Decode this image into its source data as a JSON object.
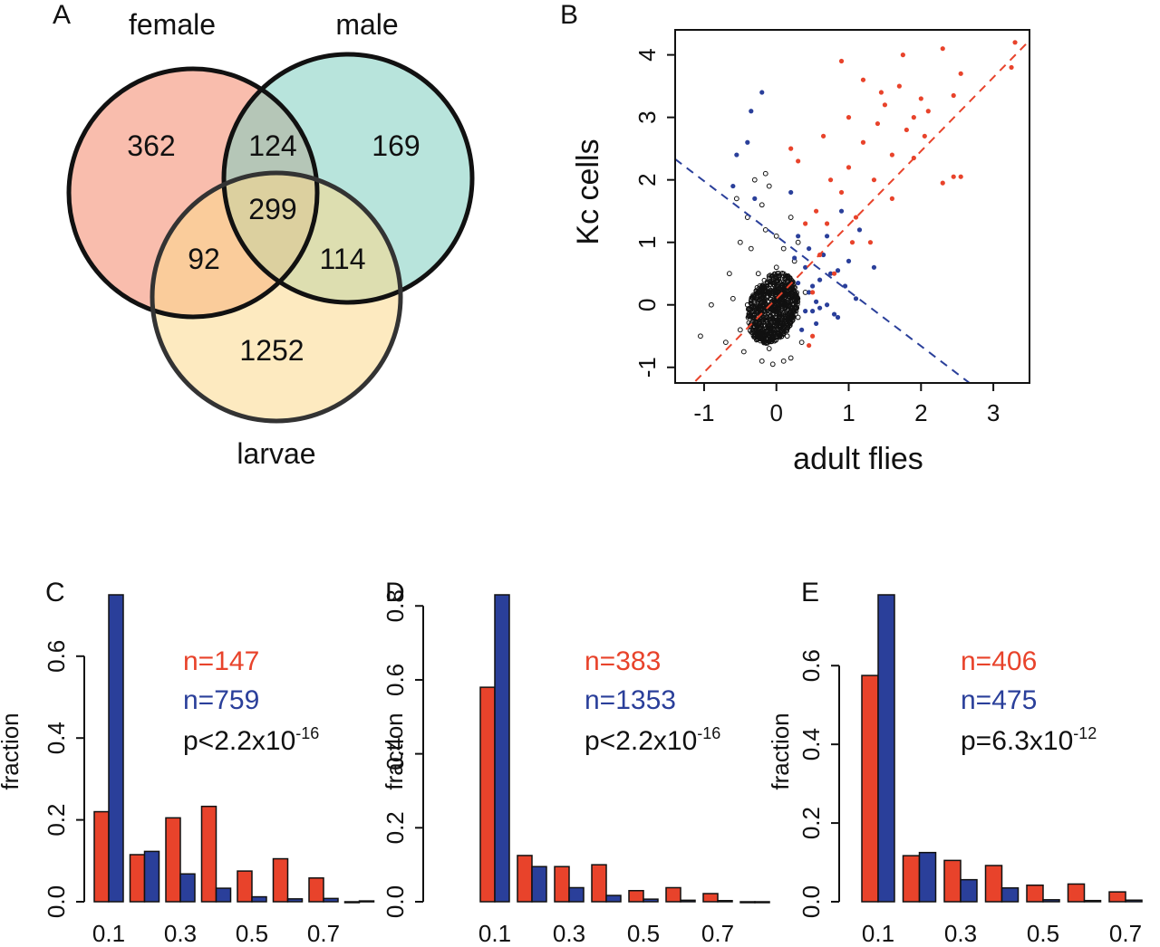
{
  "venn": {
    "panel": "A",
    "sets": [
      {
        "name": "female",
        "color": "#f4876a"
      },
      {
        "name": "male",
        "color": "#7ecdbf"
      },
      {
        "name": "larvae",
        "color": "#fbd98c"
      }
    ],
    "regions": {
      "female_only": "362",
      "male_only": "169",
      "larvae_only": "1252",
      "female_male": "124",
      "female_larvae": "92",
      "male_larvae": "114",
      "all": "299"
    }
  },
  "scatter": {
    "panel": "B",
    "xlabel": "adult flies",
    "ylabel": "Kc cells",
    "xticks": [
      "-1",
      "0",
      "1",
      "2",
      "3"
    ],
    "yticks": [
      "-1",
      "0",
      "1",
      "2",
      "3",
      "4"
    ],
    "xlim": [
      -1.4,
      3.5
    ],
    "ylim": [
      -1.25,
      4.4
    ],
    "colors": {
      "red": "#e8432b",
      "blue": "#2a3f9a",
      "black": "#111111"
    }
  },
  "chart_data": [
    {
      "type": "scatter",
      "xlabel": "adult flies",
      "ylabel": "Kc cells",
      "xlim": [
        -1.4,
        3.5
      ],
      "ylim": [
        -1.25,
        4.4
      ],
      "reference_lines": [
        {
          "color": "red",
          "style": "dashed",
          "slope": 1.18,
          "intercept": 0.1
        },
        {
          "color": "blue",
          "style": "dashed",
          "slope": -0.88,
          "intercept": 1.1
        }
      ],
      "series": [
        {
          "color": "black",
          "points": [
            [
              -0.1,
              -0.1
            ],
            [
              0.0,
              0.1
            ],
            [
              0.1,
              0.0
            ],
            [
              -0.2,
              0.2
            ],
            [
              0.05,
              -0.3
            ],
            [
              -0.3,
              -0.2
            ],
            [
              0.2,
              0.3
            ],
            [
              -0.4,
              0.0
            ],
            [
              0.15,
              -0.5
            ],
            [
              -0.25,
              0.5
            ],
            [
              0.3,
              -0.2
            ],
            [
              -0.5,
              -0.4
            ],
            [
              0.0,
              0.6
            ],
            [
              -0.1,
              -0.7
            ],
            [
              0.25,
              0.7
            ],
            [
              -0.35,
              0.9
            ],
            [
              -0.6,
              0.1
            ],
            [
              0.4,
              0.2
            ],
            [
              -0.15,
              1.2
            ],
            [
              -0.2,
              1.6
            ],
            [
              -0.3,
              2.0
            ],
            [
              -0.1,
              1.9
            ],
            [
              -0.5,
              1.0
            ],
            [
              -0.7,
              -0.6
            ],
            [
              -0.9,
              0.0
            ],
            [
              0.1,
              -0.9
            ],
            [
              -0.05,
              -0.95
            ],
            [
              0.2,
              -0.85
            ],
            [
              -1.05,
              -0.5
            ],
            [
              0.3,
              1.0
            ],
            [
              -0.4,
              1.4
            ],
            [
              0.0,
              1.1
            ],
            [
              -0.2,
              -0.9
            ],
            [
              0.35,
              -0.6
            ],
            [
              -0.65,
              0.5
            ],
            [
              -0.45,
              -0.75
            ],
            [
              0.1,
              0.9
            ],
            [
              -0.55,
              1.7
            ],
            [
              -0.15,
              2.1
            ],
            [
              0.2,
              1.4
            ]
          ]
        },
        {
          "color": "blue",
          "points": [
            [
              -0.35,
              3.1
            ],
            [
              -0.2,
              3.4
            ],
            [
              -0.4,
              2.6
            ],
            [
              -0.55,
              2.4
            ],
            [
              -0.6,
              1.9
            ],
            [
              -0.3,
              1.7
            ],
            [
              0.2,
              1.8
            ],
            [
              0.3,
              1.1
            ],
            [
              0.4,
              0.6
            ],
            [
              0.45,
              0.2
            ],
            [
              0.5,
              -0.1
            ],
            [
              0.6,
              0.4
            ],
            [
              0.55,
              -0.3
            ],
            [
              0.7,
              0.0
            ],
            [
              0.75,
              0.5
            ],
            [
              0.85,
              -0.2
            ],
            [
              0.35,
              -0.4
            ],
            [
              0.4,
              -0.1
            ],
            [
              0.45,
              0.9
            ],
            [
              0.65,
              0.8
            ],
            [
              0.95,
              0.3
            ],
            [
              1.0,
              0.7
            ],
            [
              0.9,
              1.5
            ],
            [
              1.15,
              1.2
            ],
            [
              0.8,
              -0.15
            ],
            [
              0.5,
              0.3
            ],
            [
              0.6,
              -0.05
            ],
            [
              0.3,
              0.35
            ],
            [
              0.25,
              0.75
            ],
            [
              1.35,
              0.6
            ],
            [
              1.1,
              0.1
            ],
            [
              0.7,
              1.1
            ],
            [
              0.55,
              0.05
            ],
            [
              0.85,
              0.55
            ]
          ]
        },
        {
          "color": "red",
          "points": [
            [
              0.5,
              0.2
            ],
            [
              0.6,
              0.8
            ],
            [
              0.7,
              1.3
            ],
            [
              0.8,
              0.5
            ],
            [
              0.9,
              1.8
            ],
            [
              1.0,
              2.2
            ],
            [
              1.1,
              1.4
            ],
            [
              1.2,
              2.6
            ],
            [
              1.3,
              1.0
            ],
            [
              1.4,
              2.9
            ],
            [
              1.5,
              3.2
            ],
            [
              1.6,
              2.4
            ],
            [
              1.7,
              3.5
            ],
            [
              1.8,
              2.8
            ],
            [
              1.9,
              3.0
            ],
            [
              2.0,
              3.3
            ],
            [
              2.1,
              3.1
            ],
            [
              1.75,
              4.0
            ],
            [
              2.45,
              3.35
            ],
            [
              2.55,
              3.7
            ],
            [
              3.3,
              4.2
            ],
            [
              3.25,
              3.8
            ],
            [
              1.2,
              3.6
            ],
            [
              0.9,
              3.9
            ],
            [
              0.5,
              -0.5
            ],
            [
              0.55,
              1.5
            ],
            [
              0.4,
              1.3
            ],
            [
              1.6,
              1.7
            ],
            [
              1.45,
              3.4
            ],
            [
              2.05,
              2.7
            ],
            [
              2.45,
              2.05
            ],
            [
              2.55,
              2.05
            ],
            [
              2.3,
              1.95
            ],
            [
              0.3,
              2.3
            ],
            [
              0.2,
              2.5
            ],
            [
              1.05,
              1.0
            ],
            [
              0.75,
              2.0
            ],
            [
              1.9,
              2.35
            ],
            [
              1.35,
              2.0
            ],
            [
              0.65,
              2.7
            ],
            [
              1.0,
              3.0
            ],
            [
              2.3,
              4.1
            ],
            [
              0.45,
              -0.65
            ]
          ]
        }
      ]
    },
    {
      "type": "bar",
      "panel": "C",
      "categories": [
        "0.1",
        "0.2",
        "0.3",
        "0.4",
        "0.5",
        "0.6",
        "0.7",
        "0.8"
      ],
      "tick_labels": [
        "0.1",
        "0.3",
        "0.5",
        "0.7"
      ],
      "ylabel": "fraction",
      "yticks": [
        "0.0",
        "0.2",
        "0.4",
        "0.6"
      ],
      "ylim": [
        0,
        0.75
      ],
      "series": [
        {
          "name": "n=147",
          "color": "#e8432b",
          "values": [
            0.22,
            0.115,
            0.205,
            0.233,
            0.075,
            0.105,
            0.058,
            0.0
          ]
        },
        {
          "name": "n=759",
          "color": "#2a3f9a",
          "values": [
            0.75,
            0.123,
            0.068,
            0.033,
            0.012,
            0.007,
            0.008,
            0.002
          ]
        }
      ],
      "annotations": {
        "n1": "n=147",
        "n2": "n=759",
        "p_prefix": "p<2.2x10",
        "p_exp": "-16"
      }
    },
    {
      "type": "bar",
      "panel": "D",
      "categories": [
        "0.1",
        "0.2",
        "0.3",
        "0.4",
        "0.5",
        "0.6",
        "0.7",
        "0.8"
      ],
      "tick_labels": [
        "0.1",
        "0.3",
        "0.5",
        "0.7"
      ],
      "ylabel": "fraction",
      "yticks": [
        "0.0",
        "0.2",
        "0.4",
        "0.6",
        "0.8"
      ],
      "ylim": [
        0,
        0.83
      ],
      "series": [
        {
          "name": "n=383",
          "color": "#e8432b",
          "values": [
            0.58,
            0.125,
            0.095,
            0.1,
            0.03,
            0.038,
            0.022,
            0.0
          ]
        },
        {
          "name": "n=1353",
          "color": "#2a3f9a",
          "values": [
            0.83,
            0.095,
            0.038,
            0.017,
            0.007,
            0.004,
            0.003,
            0.0
          ]
        }
      ],
      "annotations": {
        "n1": "n=383",
        "n2": "n=1353",
        "p_prefix": "p<2.2x10",
        "p_exp": "-16"
      }
    },
    {
      "type": "bar",
      "panel": "E",
      "categories": [
        "0.1",
        "0.2",
        "0.3",
        "0.4",
        "0.5",
        "0.6",
        "0.7"
      ],
      "tick_labels": [
        "0.1",
        "0.3",
        "0.5",
        "0.7"
      ],
      "ylabel": "fraction",
      "yticks": [
        "0.0",
        "0.2",
        "0.4",
        "0.6"
      ],
      "ylim": [
        0,
        0.78
      ],
      "series": [
        {
          "name": "n=406",
          "color": "#e8432b",
          "values": [
            0.575,
            0.117,
            0.105,
            0.092,
            0.042,
            0.045,
            0.025
          ]
        },
        {
          "name": "n=475",
          "color": "#2a3f9a",
          "values": [
            0.78,
            0.125,
            0.056,
            0.035,
            0.005,
            0.003,
            0.004
          ]
        }
      ],
      "annotations": {
        "n1": "n=406",
        "n2": "n=475",
        "p_prefix": "p=6.3x10",
        "p_exp": "-12"
      }
    }
  ]
}
